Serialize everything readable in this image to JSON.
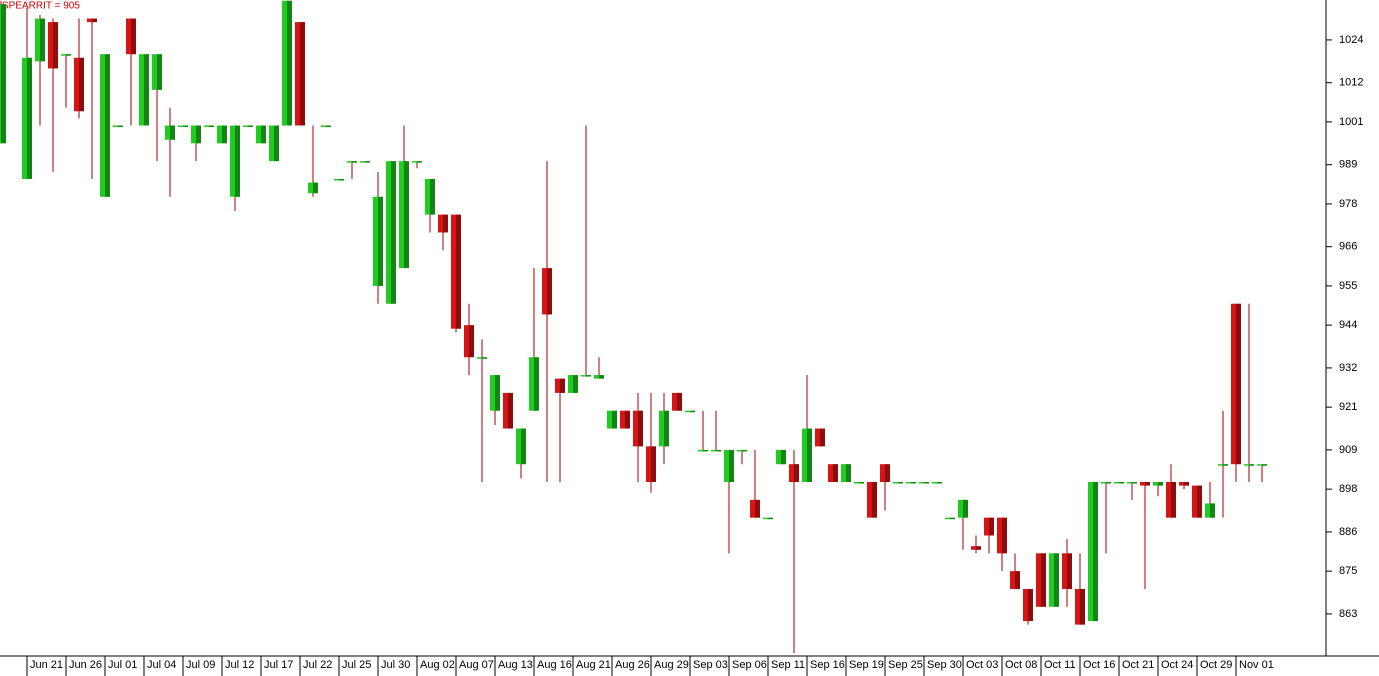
{
  "chart_data": {
    "type": "candlestick",
    "title": "SPEARRIT = 905",
    "categories": [
      null,
      null,
      "Jun 21",
      null,
      null,
      "Jun 26",
      null,
      null,
      "Jul 01",
      null,
      null,
      "Jul 04",
      null,
      null,
      "Jul 09",
      null,
      null,
      "Jul 12",
      null,
      null,
      "Jul 17",
      null,
      null,
      "Jul 22",
      null,
      null,
      "Jul 25",
      null,
      null,
      "Jul 30",
      null,
      null,
      "Aug 02",
      null,
      null,
      "Aug 07",
      null,
      null,
      "Aug 13",
      null,
      null,
      "Aug 16",
      null,
      null,
      "Aug 21",
      null,
      null,
      "Aug 26",
      null,
      null,
      "Aug 29",
      null,
      null,
      "Sep 03",
      null,
      null,
      "Sep 06",
      null,
      null,
      "Sep 11",
      null,
      null,
      "Sep 16",
      null,
      null,
      "Sep 19",
      null,
      null,
      "Sep 25",
      null,
      null,
      "Sep 30",
      null,
      null,
      "Oct 03",
      null,
      null,
      "Oct 08",
      null,
      null,
      "Oct 11",
      null,
      null,
      "Oct 16",
      null,
      null,
      "Oct 21",
      null,
      null,
      "Oct 24",
      null,
      null,
      "Oct 29",
      null,
      null,
      "Nov 01",
      null,
      null
    ],
    "open": [
      995,
      null,
      985,
      1018,
      1029,
      1020,
      1019,
      1030,
      980,
      1000,
      1030,
      1000,
      1010,
      996,
      1000,
      995,
      1000,
      995,
      980,
      1000,
      995,
      990,
      1000,
      1029,
      981,
      1000,
      985,
      990,
      990,
      955,
      950,
      960,
      990,
      975,
      975,
      975,
      944,
      935,
      920,
      925,
      905,
      920,
      960,
      929,
      925,
      930,
      929,
      915,
      920,
      920,
      910,
      910,
      925,
      920,
      909,
      909,
      900,
      909,
      895,
      890,
      905,
      905,
      900,
      915,
      905,
      900,
      900,
      900,
      905,
      900,
      900,
      900,
      900,
      890,
      890,
      882,
      890,
      890,
      875,
      870,
      880,
      865,
      880,
      870,
      861,
      900,
      900,
      900,
      900,
      899,
      900,
      900,
      899,
      890,
      905,
      950,
      905,
      905
    ],
    "high": [
      1035,
      null,
      1033,
      1031,
      1030,
      1020,
      1030,
      1030,
      1020,
      1000,
      1030,
      1020,
      1020,
      1005,
      1000,
      1000,
      1000,
      1000,
      1000,
      1000,
      1000,
      1000,
      1035,
      1029,
      1000,
      1000,
      985,
      990,
      990,
      987,
      990,
      1000,
      990,
      985,
      975,
      975,
      950,
      940,
      930,
      925,
      915,
      960,
      990,
      929,
      930,
      1000,
      935,
      920,
      920,
      925,
      925,
      925,
      925,
      920,
      920,
      920,
      909,
      909,
      909,
      890,
      909,
      909,
      930,
      915,
      905,
      905,
      900,
      900,
      905,
      900,
      900,
      900,
      900,
      890,
      895,
      885,
      890,
      890,
      880,
      870,
      880,
      880,
      884,
      880,
      900,
      900,
      900,
      900,
      900,
      900,
      905,
      900,
      899,
      900,
      920,
      950,
      950,
      905
    ],
    "low": [
      995,
      null,
      985,
      1000,
      987,
      1005,
      1002,
      985,
      980,
      1000,
      1000,
      1000,
      990,
      980,
      1000,
      990,
      1000,
      995,
      976,
      1000,
      995,
      990,
      1000,
      1000,
      980,
      1000,
      985,
      985,
      990,
      950,
      950,
      960,
      988,
      970,
      965,
      942,
      930,
      900,
      916,
      915,
      901,
      920,
      900,
      900,
      925,
      930,
      929,
      915,
      915,
      900,
      897,
      905,
      920,
      920,
      909,
      909,
      880,
      905,
      890,
      890,
      905,
      852,
      900,
      910,
      900,
      900,
      900,
      890,
      892,
      900,
      900,
      900,
      900,
      890,
      881,
      880,
      880,
      875,
      870,
      860,
      865,
      865,
      865,
      860,
      861,
      880,
      900,
      895,
      870,
      896,
      890,
      898,
      890,
      890,
      890,
      900,
      900,
      900
    ],
    "close": [
      1034,
      null,
      1019,
      1030,
      1016,
      1020,
      1004,
      1029,
      1020,
      1000,
      1020,
      1020,
      1020,
      1000,
      1000,
      1000,
      1000,
      1000,
      1000,
      1000,
      1000,
      1000,
      1035,
      1000,
      984,
      1000,
      985,
      990,
      990,
      980,
      990,
      990,
      990,
      985,
      970,
      943,
      935,
      935,
      930,
      915,
      915,
      935,
      947,
      925,
      930,
      930,
      930,
      920,
      915,
      910,
      900,
      920,
      920,
      920,
      909,
      909,
      909,
      909,
      890,
      890,
      909,
      900,
      915,
      910,
      900,
      905,
      900,
      890,
      900,
      900,
      900,
      900,
      900,
      890,
      895,
      881,
      885,
      880,
      870,
      861,
      865,
      880,
      870,
      860,
      900,
      900,
      900,
      900,
      899,
      900,
      890,
      899,
      890,
      894,
      905,
      905,
      905,
      905
    ],
    "up_color": "#1fcc1f",
    "down_color": "#d81414",
    "wick_color": "#a00000",
    "ylim": [
      851.2,
      1035.2
    ],
    "yticks": [
      1024,
      1012,
      1001,
      989,
      978,
      966,
      955,
      944,
      932,
      921,
      909,
      898,
      886,
      875,
      863
    ]
  }
}
